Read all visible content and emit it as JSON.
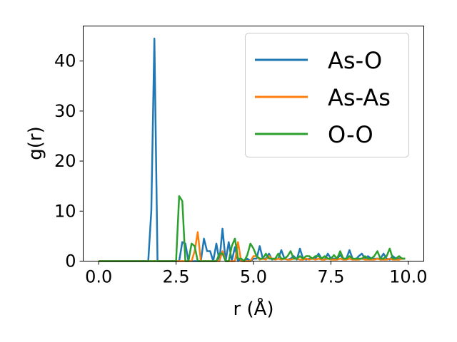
{
  "chart_data": {
    "type": "line",
    "title": "",
    "xlabel": "r (Å)",
    "ylabel": "g(r)",
    "xlim": [
      -0.5,
      10.5
    ],
    "ylim": [
      0,
      47
    ],
    "xticks": [
      0.0,
      2.5,
      5.0,
      7.5,
      10.0
    ],
    "xtick_labels": [
      "0.0",
      "2.5",
      "5.0",
      "7.5",
      "10.0"
    ],
    "yticks": [
      0,
      10,
      20,
      30,
      40
    ],
    "ytick_labels": [
      "0",
      "10",
      "20",
      "30",
      "40"
    ],
    "grid": false,
    "legend_position": "upper right",
    "series": [
      {
        "name": "As-O",
        "color": "#1f77b4",
        "x": [
          0.0,
          0.1,
          0.2,
          0.3,
          0.4,
          0.5,
          0.6,
          0.7,
          0.8,
          0.9,
          1.0,
          1.1,
          1.2,
          1.3,
          1.4,
          1.5,
          1.6,
          1.7,
          1.8,
          1.9,
          2.0,
          2.1,
          2.2,
          2.3,
          2.4,
          2.5,
          2.6,
          2.7,
          2.8,
          2.9,
          3.0,
          3.1,
          3.2,
          3.3,
          3.4,
          3.5,
          3.6,
          3.7,
          3.8,
          3.9,
          4.0,
          4.1,
          4.2,
          4.3,
          4.4,
          4.5,
          4.6,
          4.7,
          4.8,
          4.9,
          5.0,
          5.1,
          5.2,
          5.3,
          5.4,
          5.5,
          5.6,
          5.7,
          5.8,
          5.9,
          6.0,
          6.1,
          6.2,
          6.3,
          6.4,
          6.5,
          6.6,
          6.7,
          6.8,
          6.9,
          7.0,
          7.1,
          7.2,
          7.3,
          7.4,
          7.5,
          7.6,
          7.7,
          7.8,
          7.9,
          8.0,
          8.1,
          8.2,
          8.3,
          8.4,
          8.5,
          8.6,
          8.7,
          8.8,
          8.9,
          9.0,
          9.1,
          9.2,
          9.3,
          9.4,
          9.5,
          9.6,
          9.7,
          9.8,
          9.9
        ],
        "y": [
          0,
          0,
          0,
          0,
          0,
          0,
          0,
          0,
          0,
          0,
          0,
          0,
          0,
          0,
          0,
          0,
          0,
          10,
          44.5,
          0,
          0,
          0,
          0,
          0,
          0,
          0,
          0,
          3.8,
          3.5,
          0,
          0,
          0,
          0,
          0,
          4.5,
          2,
          2,
          0,
          3.5,
          0,
          6.5,
          0,
          3.8,
          0,
          2.8,
          0,
          0.5,
          0,
          0.5,
          0,
          0.5,
          0.5,
          3,
          0.5,
          0.5,
          1.5,
          0.3,
          0.5,
          0.5,
          2.2,
          0.5,
          0.3,
          0.5,
          1,
          0.3,
          2.5,
          0.5,
          0.3,
          0.5,
          0.5,
          0.5,
          1.5,
          0.5,
          0.3,
          1.5,
          0.5,
          0.5,
          0.5,
          1.2,
          0.5,
          0.5,
          2.2,
          0.5,
          0.3,
          1,
          1.5,
          0.5,
          1,
          0.5,
          0.5,
          0.5,
          0.5,
          1.5,
          0.5,
          0.3,
          1,
          0.5,
          0.5,
          0.5,
          0.5
        ]
      },
      {
        "name": "As-As",
        "color": "#ff7f0e",
        "x": [
          0.0,
          0.1,
          0.2,
          0.3,
          0.4,
          0.5,
          0.6,
          0.7,
          0.8,
          0.9,
          1.0,
          1.1,
          1.2,
          1.3,
          1.4,
          1.5,
          1.6,
          1.7,
          1.8,
          1.9,
          2.0,
          2.1,
          2.2,
          2.3,
          2.4,
          2.5,
          2.6,
          2.7,
          2.8,
          2.9,
          3.0,
          3.1,
          3.2,
          3.3,
          3.4,
          3.5,
          3.6,
          3.7,
          3.8,
          3.9,
          4.0,
          4.1,
          4.2,
          4.3,
          4.4,
          4.5,
          4.6,
          4.7,
          4.8,
          4.9,
          5.0,
          5.1,
          5.2,
          5.3,
          5.4,
          5.5,
          5.6,
          5.7,
          5.8,
          5.9,
          6.0,
          6.1,
          6.2,
          6.3,
          6.4,
          6.5,
          6.6,
          6.7,
          6.8,
          6.9,
          7.0,
          7.1,
          7.2,
          7.3,
          7.4,
          7.5,
          7.6,
          7.7,
          7.8,
          7.9,
          8.0,
          8.1,
          8.2,
          8.3,
          8.4,
          8.5,
          8.6,
          8.7,
          8.8,
          8.9,
          9.0,
          9.1,
          9.2,
          9.3,
          9.4,
          9.5,
          9.6,
          9.7,
          9.8,
          9.9
        ],
        "y": [
          0,
          0,
          0,
          0,
          0,
          0,
          0,
          0,
          0,
          0,
          0,
          0,
          0,
          0,
          0,
          0,
          0,
          0,
          0,
          0,
          0,
          0,
          0,
          0,
          0,
          0,
          0,
          0,
          0,
          0,
          0,
          2,
          5.8,
          0,
          0,
          0,
          0,
          0,
          0,
          0,
          2,
          0,
          0,
          0,
          0,
          3.8,
          0,
          0,
          0,
          0,
          1,
          1,
          0.3,
          0.5,
          0.3,
          1,
          0.5,
          0.3,
          0.5,
          0.3,
          0.5,
          0.3,
          0.3,
          0.5,
          0.5,
          0.3,
          0.3,
          0.5,
          0.3,
          0.5,
          0.3,
          0.5,
          0.3,
          0.3,
          0.5,
          0.3,
          0.3,
          0.3,
          0.5,
          0.3,
          0.3,
          0.5,
          0.3,
          0.3,
          0.3,
          0.5,
          0.3,
          0.3,
          0.3,
          0.3,
          0.5,
          0.3,
          0.3,
          0.3,
          0.5,
          0.3,
          0.3,
          0.3,
          0.5,
          0.5
        ]
      },
      {
        "name": "O-O",
        "color": "#2ca02c",
        "x": [
          0.0,
          0.1,
          0.2,
          0.3,
          0.4,
          0.5,
          0.6,
          0.7,
          0.8,
          0.9,
          1.0,
          1.1,
          1.2,
          1.3,
          1.4,
          1.5,
          1.6,
          1.7,
          1.8,
          1.9,
          2.0,
          2.1,
          2.2,
          2.3,
          2.4,
          2.5,
          2.6,
          2.7,
          2.8,
          2.9,
          3.0,
          3.1,
          3.2,
          3.3,
          3.4,
          3.5,
          3.6,
          3.7,
          3.8,
          3.9,
          4.0,
          4.1,
          4.2,
          4.3,
          4.4,
          4.5,
          4.6,
          4.7,
          4.8,
          4.9,
          5.0,
          5.1,
          5.2,
          5.3,
          5.4,
          5.5,
          5.6,
          5.7,
          5.8,
          5.9,
          6.0,
          6.1,
          6.2,
          6.3,
          6.4,
          6.5,
          6.6,
          6.7,
          6.8,
          6.9,
          7.0,
          7.1,
          7.2,
          7.3,
          7.4,
          7.5,
          7.6,
          7.7,
          7.8,
          7.9,
          8.0,
          8.1,
          8.2,
          8.3,
          8.4,
          8.5,
          8.6,
          8.7,
          8.8,
          8.9,
          9.0,
          9.1,
          9.2,
          9.3,
          9.4,
          9.5,
          9.6,
          9.7,
          9.8,
          9.9
        ],
        "y": [
          0,
          0,
          0,
          0,
          0,
          0,
          0,
          0,
          0,
          0,
          0,
          0,
          0,
          0,
          0,
          0,
          0,
          0,
          0,
          0,
          0,
          0,
          0,
          0,
          0,
          0,
          13,
          12,
          0,
          0,
          3.5,
          3,
          0,
          0,
          0,
          0,
          0,
          0,
          0,
          1.5,
          1.5,
          0,
          0,
          3,
          4.5,
          0.5,
          0.5,
          0,
          1.2,
          3.5,
          2.5,
          1,
          0.5,
          0.5,
          1.5,
          0.5,
          0.5,
          0.5,
          1.5,
          0.5,
          0.5,
          1,
          2,
          0.5,
          0.5,
          1,
          0.5,
          1,
          1,
          0.5,
          1,
          1,
          0.5,
          1,
          0.5,
          0.5,
          1.2,
          0.5,
          2,
          0.5,
          0.5,
          1,
          0.5,
          0.5,
          0.5,
          0.5,
          1,
          0.5,
          0.5,
          1,
          2,
          0.5,
          0.5,
          1,
          2.5,
          0.5,
          0.5,
          1,
          0.5,
          0.5
        ]
      }
    ]
  }
}
